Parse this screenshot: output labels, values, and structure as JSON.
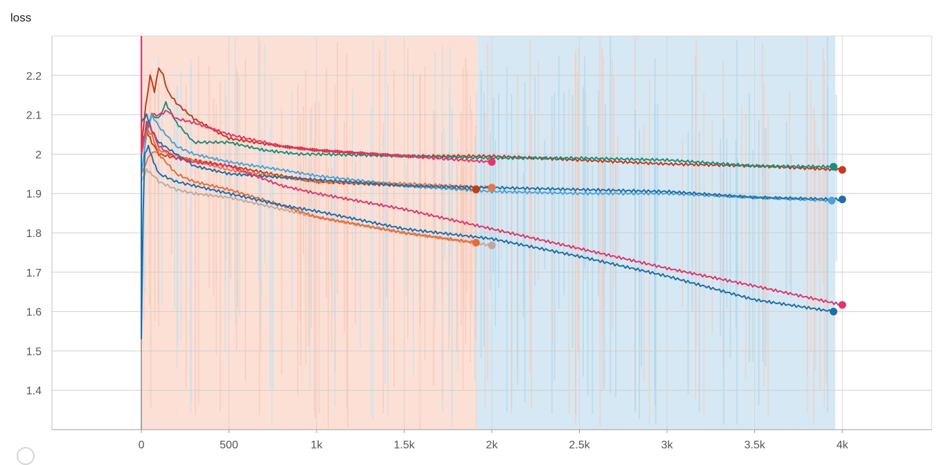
{
  "chart_data": {
    "type": "line",
    "title": "loss",
    "xlabel": "",
    "ylabel": "",
    "xlim": [
      -510,
      4510
    ],
    "ylim": [
      1.3,
      2.3
    ],
    "x_ticks": [
      0,
      500,
      1000,
      1500,
      2000,
      2500,
      3000,
      3500,
      4000
    ],
    "x_tick_labels": [
      "0",
      "500",
      "1k",
      "1.5k",
      "2k",
      "2.5k",
      "3k",
      "3.5k",
      "4k"
    ],
    "y_ticks": [
      1.4,
      1.5,
      1.6,
      1.7,
      1.8,
      1.9,
      2.0,
      2.1,
      2.2
    ],
    "y_tick_labels": [
      "1.4",
      "1.5",
      "1.6",
      "1.7",
      "1.8",
      "1.9",
      "2",
      "2.1",
      "2.2"
    ],
    "grid": true,
    "legend": "none",
    "series": [
      {
        "color": "#c23b1a",
        "x": [
          0,
          25,
          50,
          75,
          100,
          125,
          150,
          200,
          300,
          500,
          800,
          1000,
          1500,
          2000,
          2500,
          3000,
          3500,
          4000
        ],
        "y": [
          2.02,
          2.12,
          2.2,
          2.16,
          2.22,
          2.2,
          2.16,
          2.13,
          2.09,
          2.04,
          2.02,
          2.01,
          1.995,
          1.995,
          1.985,
          1.975,
          1.97,
          1.96
        ]
      },
      {
        "color": "#1f8c7a",
        "x": [
          0,
          30,
          60,
          100,
          140,
          200,
          300,
          400,
          500,
          700,
          900,
          1000,
          1500,
          2000,
          2500,
          3000,
          3500,
          3950
        ],
        "y": [
          2.0,
          2.07,
          2.1,
          2.09,
          2.13,
          2.08,
          2.03,
          2.03,
          2.03,
          2.01,
          2.0,
          2.0,
          1.995,
          1.99,
          1.99,
          1.985,
          1.97,
          1.968
        ]
      },
      {
        "color": "#e8336d",
        "x": [
          0,
          30,
          60,
          100,
          150,
          200,
          300,
          500,
          800,
          1000,
          1500,
          2000
        ],
        "y": [
          2.0,
          2.06,
          2.1,
          2.1,
          2.11,
          2.09,
          2.08,
          2.05,
          2.02,
          2.01,
          1.995,
          1.98
        ]
      },
      {
        "color": "#c2400f",
        "x": [
          0,
          30,
          60,
          100,
          200,
          300,
          500,
          800,
          1000,
          1500,
          1910
        ],
        "y": [
          2.03,
          2.06,
          2.03,
          2.0,
          1.99,
          1.985,
          1.97,
          1.945,
          1.93,
          1.92,
          1.91
        ]
      },
      {
        "color": "#4aa3d6",
        "x": [
          0,
          30,
          60,
          100,
          200,
          300,
          500,
          800,
          1000,
          1500,
          2000,
          2500,
          3000,
          3500,
          3940
        ],
        "y": [
          1.95,
          2.05,
          2.1,
          2.07,
          2.02,
          2.0,
          1.98,
          1.96,
          1.945,
          1.92,
          1.905,
          1.9,
          1.9,
          1.89,
          1.882
        ]
      },
      {
        "color": "#ea7745",
        "x": [
          0,
          50,
          100,
          200,
          500,
          1000,
          1500,
          2000
        ],
        "y": [
          1.95,
          2.0,
          2.01,
          1.995,
          1.96,
          1.93,
          1.925,
          1.915
        ]
      },
      {
        "color": "#1f6fa8",
        "x": [
          0,
          30,
          60,
          100,
          200,
          300,
          500,
          1000,
          1500,
          2000,
          2500,
          3000,
          3500,
          4000
        ],
        "y": [
          2.08,
          2.1,
          2.06,
          2.03,
          2.0,
          1.97,
          1.95,
          1.935,
          1.92,
          1.915,
          1.91,
          1.905,
          1.89,
          1.885
        ]
      },
      {
        "color": "#c2a8a0",
        "x": [
          0,
          30,
          60,
          100,
          200,
          300,
          500,
          800,
          1000,
          1500,
          2000
        ],
        "y": [
          1.93,
          1.96,
          1.95,
          1.93,
          1.91,
          1.9,
          1.89,
          1.86,
          1.84,
          1.8,
          1.768
        ]
      },
      {
        "color": "#ea6a35",
        "x": [
          0,
          30,
          60,
          100,
          200,
          300,
          500,
          800,
          1000,
          1500,
          1910
        ],
        "y": [
          2.0,
          2.06,
          2.05,
          2.0,
          1.95,
          1.93,
          1.91,
          1.87,
          1.84,
          1.8,
          1.775
        ]
      },
      {
        "color": "#1a6fac",
        "x": [
          0,
          10,
          20,
          40,
          70,
          100,
          200,
          300,
          500,
          800,
          1000,
          1500,
          2000,
          2500,
          3000,
          3500,
          3950
        ],
        "y": [
          1.53,
          1.85,
          2.0,
          2.02,
          1.98,
          1.95,
          1.93,
          1.92,
          1.9,
          1.87,
          1.855,
          1.81,
          1.785,
          1.74,
          1.69,
          1.63,
          1.6
        ]
      },
      {
        "color": "#e0356f",
        "x": [
          0,
          30,
          60,
          100,
          200,
          300,
          500,
          800,
          1000,
          1500,
          2000,
          2500,
          3000,
          3500,
          4000
        ],
        "y": [
          2.0,
          2.08,
          2.06,
          2.02,
          1.99,
          1.98,
          1.97,
          1.92,
          1.9,
          1.86,
          1.81,
          1.76,
          1.71,
          1.665,
          1.617
        ]
      }
    ]
  }
}
